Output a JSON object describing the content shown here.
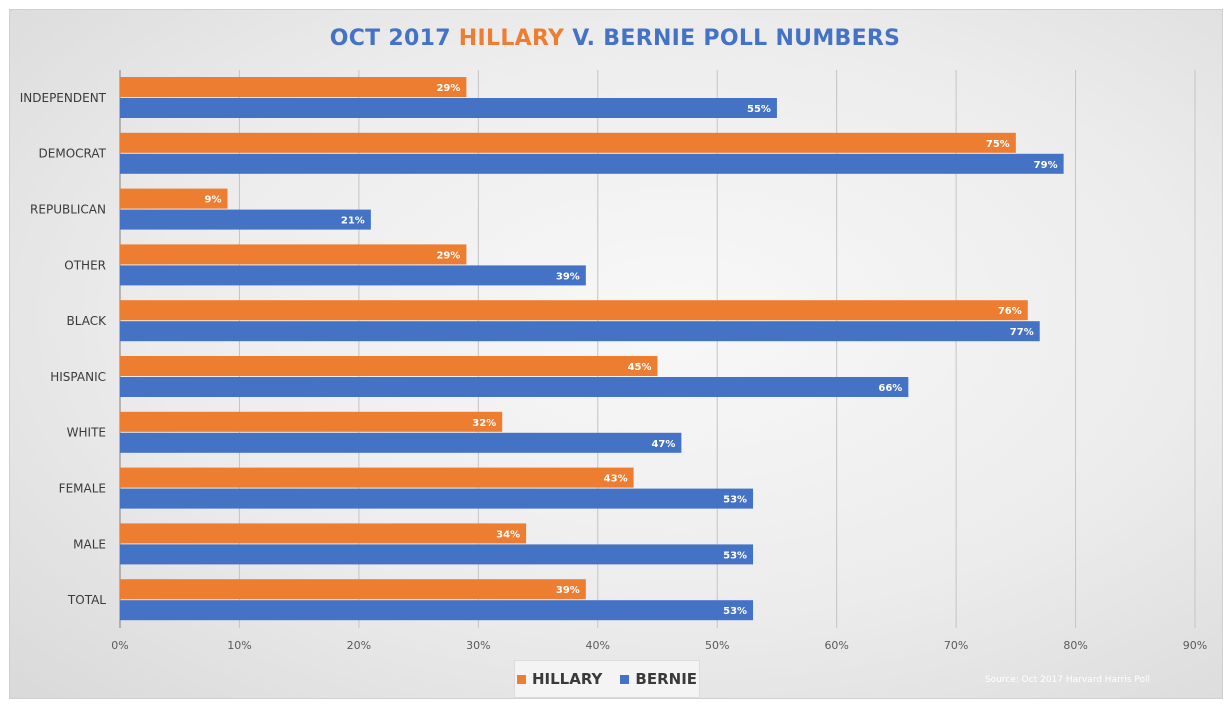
{
  "chart_data": {
    "type": "bar",
    "orientation": "horizontal",
    "title_parts": [
      {
        "text": "OCT 2017 ",
        "color": "#4472c4"
      },
      {
        "text": "HILLARY",
        "color": "#ed7d31"
      },
      {
        "text": " V. BERNIE POLL NUMBERS",
        "color": "#4472c4"
      }
    ],
    "categories": [
      "INDEPENDENT",
      "DEMOCRAT",
      "REPUBLICAN",
      "OTHER",
      "BLACK",
      "HISPANIC",
      "WHITE",
      "FEMALE",
      "MALE",
      "TOTAL"
    ],
    "series": [
      {
        "name": "HILLARY",
        "color": "#ed7d31",
        "values": [
          29,
          75,
          9,
          29,
          76,
          45,
          32,
          43,
          34,
          39
        ]
      },
      {
        "name": "BERNIE",
        "color": "#4472c4",
        "values": [
          55,
          79,
          21,
          39,
          77,
          66,
          47,
          53,
          53,
          53
        ]
      }
    ],
    "data_labels": [
      [
        "29%",
        "75%",
        "9%",
        "29%",
        "76%",
        "45%",
        "32%",
        "43%",
        "34%",
        "39%"
      ],
      [
        "55%",
        "79%",
        "21%",
        "39%",
        "77%",
        "66%",
        "47%",
        "53%",
        "53%",
        "53%"
      ]
    ],
    "xlim": [
      0,
      90
    ],
    "x_ticks": [
      "0%",
      "10%",
      "20%",
      "30%",
      "40%",
      "50%",
      "60%",
      "70%",
      "80%",
      "90%"
    ],
    "grid": true,
    "legend_position": "bottom",
    "source": "Source: Oct 2017 Harvard Harris Poll"
  }
}
